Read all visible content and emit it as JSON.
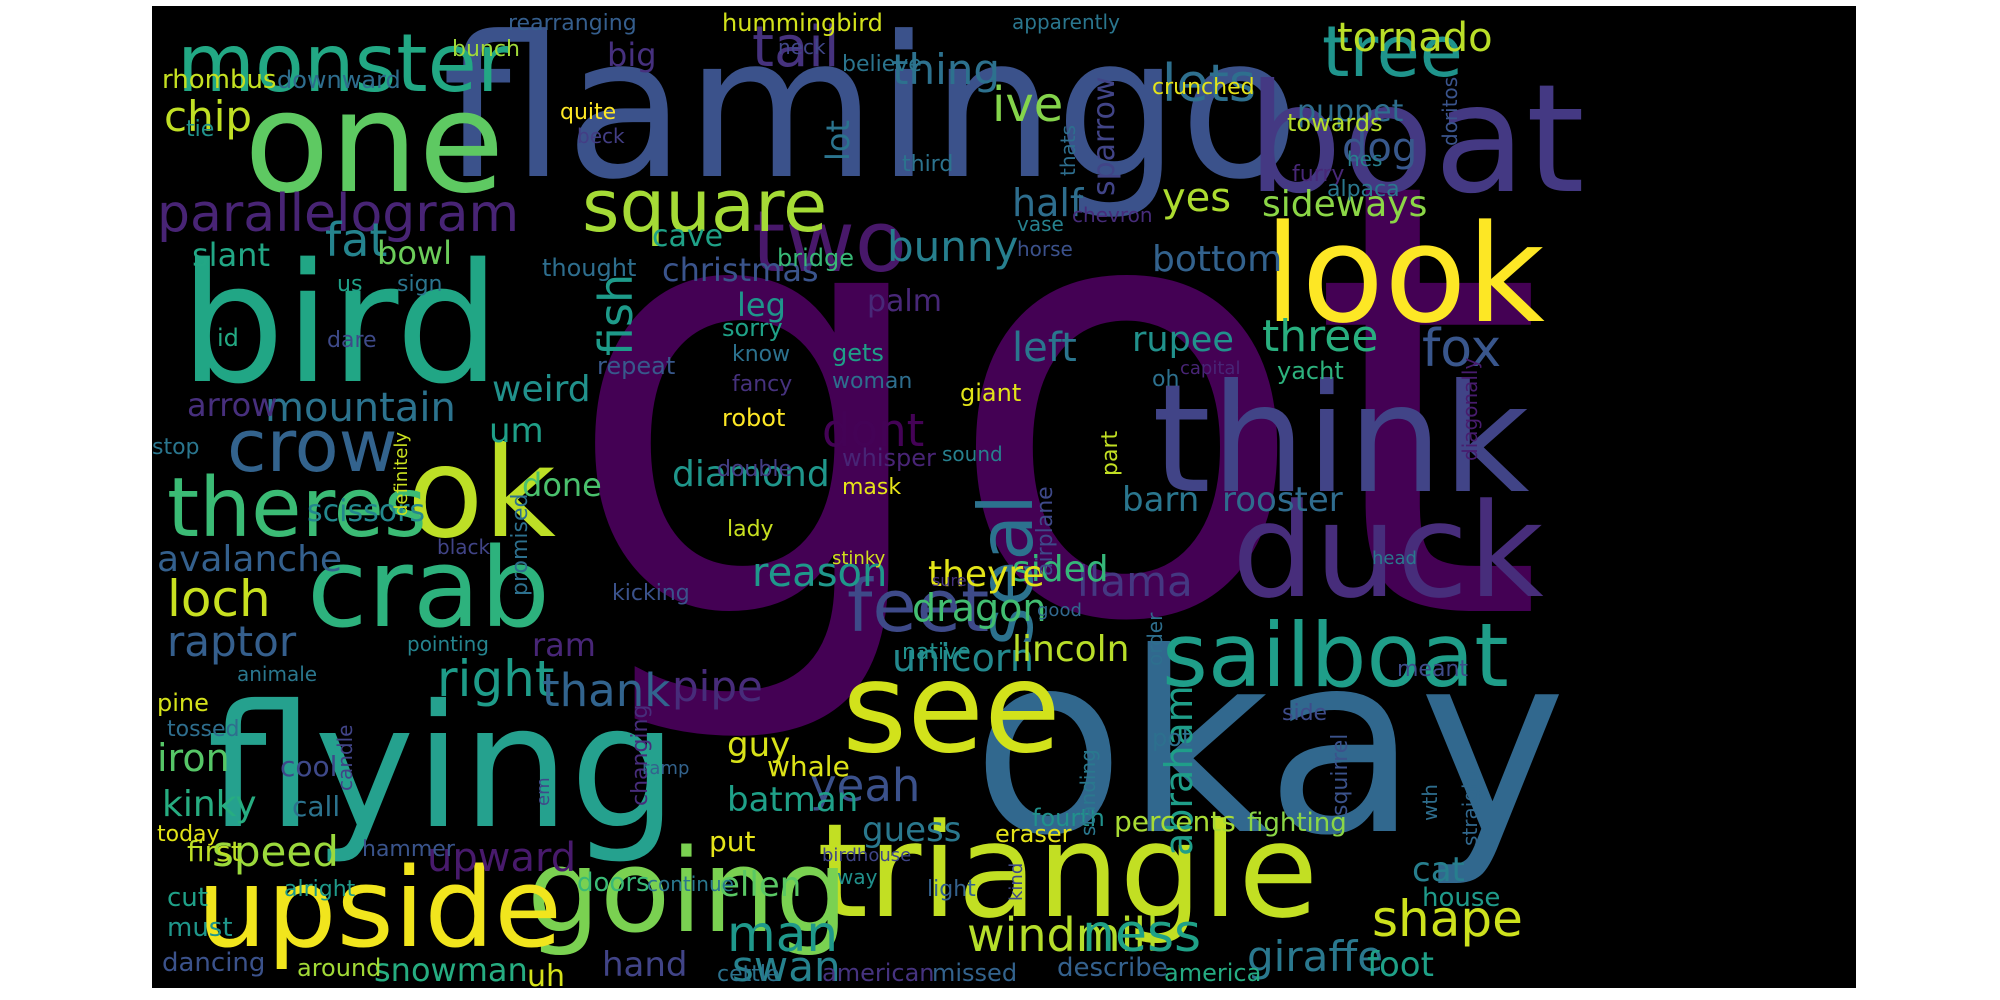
{
  "word_cloud": {
    "background": "#000000",
    "words": [
      {
        "text": "got",
        "color": "#440154"
      },
      {
        "text": "okay",
        "color": "#31688e"
      },
      {
        "text": "flamingo",
        "color": "#3b528b"
      },
      {
        "text": "one",
        "color": "#5ec962"
      },
      {
        "text": "boat",
        "color": "#443983"
      },
      {
        "text": "bird",
        "color": "#21a685"
      },
      {
        "text": "look",
        "color": "#fde725"
      },
      {
        "text": "think",
        "color": "#414487"
      },
      {
        "text": "duck",
        "color": "#472d7b"
      },
      {
        "text": "flying",
        "color": "#25a18e"
      },
      {
        "text": "triangle",
        "color": "#c2df23"
      },
      {
        "text": "see",
        "color": "#d2e21b"
      },
      {
        "text": "going",
        "color": "#7ad151"
      },
      {
        "text": "upside",
        "color": "#f1e51d"
      },
      {
        "text": "crab",
        "color": "#2db27d"
      },
      {
        "text": "ok",
        "color": "#bddf26"
      },
      {
        "text": "sailboat",
        "color": "#1f9e89"
      },
      {
        "text": "monster",
        "color": "#22a884"
      },
      {
        "text": "theres",
        "color": "#3bbb75"
      },
      {
        "text": "two",
        "color": "#48186a"
      },
      {
        "text": "square",
        "color": "#a5db36"
      },
      {
        "text": "tree",
        "color": "#1f948c"
      },
      {
        "text": "feet",
        "color": "#3e4a89"
      },
      {
        "text": "seal",
        "color": "#2c728e"
      },
      {
        "text": "crow",
        "color": "#33638d"
      },
      {
        "text": "parallelogram",
        "color": "#482475"
      },
      {
        "text": "tail",
        "color": "#46327e"
      },
      {
        "text": "lets",
        "color": "#2e6f8e"
      },
      {
        "text": "tornado",
        "color": "#bade28"
      },
      {
        "text": "loch",
        "color": "#c8e020"
      },
      {
        "text": "raptor",
        "color": "#355f8d"
      },
      {
        "text": "right",
        "color": "#1e9c89"
      },
      {
        "text": "three",
        "color": "#29af7f"
      },
      {
        "text": "fox",
        "color": "#39568c"
      },
      {
        "text": "llama",
        "color": "#453882"
      },
      {
        "text": "shape",
        "color": "#cde11d"
      },
      {
        "text": "giraffe",
        "color": "#2a788e"
      },
      {
        "text": "man",
        "color": "#1f988b"
      },
      {
        "text": "windmill",
        "color": "#b5de2b"
      },
      {
        "text": "ness",
        "color": "#1fa187"
      },
      {
        "text": "swan",
        "color": "#26828e"
      },
      {
        "text": "yeah",
        "color": "#3b518b"
      },
      {
        "text": "upward",
        "color": "#481a6c"
      },
      {
        "text": "speed",
        "color": "#9bd93c"
      },
      {
        "text": "thank",
        "color": "#32648e"
      },
      {
        "text": "pipe",
        "color": "#472c7a"
      },
      {
        "text": "bunny",
        "color": "#277f8e"
      },
      {
        "text": "dont",
        "color": "#440256"
      },
      {
        "text": "ive",
        "color": "#84d44b"
      },
      {
        "text": "thing",
        "color": "#2d718e"
      },
      {
        "text": "dog",
        "color": "#38588c"
      },
      {
        "text": "fat",
        "color": "#25848e"
      },
      {
        "text": "chip",
        "color": "#c0df25"
      },
      {
        "text": "half",
        "color": "#2e6e8e"
      },
      {
        "text": "fish",
        "color": "#1e9b8a"
      },
      {
        "text": "mountain",
        "color": "#2c738e"
      },
      {
        "text": "left",
        "color": "#2a768e"
      },
      {
        "text": "sideways",
        "color": "#8bd646"
      },
      {
        "text": "yes",
        "color": "#addc30"
      },
      {
        "text": "bottom",
        "color": "#33628d"
      },
      {
        "text": "rupee",
        "color": "#21918c"
      },
      {
        "text": "barn",
        "color": "#2a768e"
      },
      {
        "text": "rooster",
        "color": "#2f6c8e"
      },
      {
        "text": "sided",
        "color": "#35b779"
      },
      {
        "text": "dragon",
        "color": "#42be71"
      },
      {
        "text": "unicorn",
        "color": "#23898e"
      },
      {
        "text": "lincoln",
        "color": "#b8de29"
      },
      {
        "text": "abraham",
        "color": "#1f9e89"
      },
      {
        "text": "reason",
        "color": "#1f988b"
      },
      {
        "text": "theyre",
        "color": "#e2e418"
      },
      {
        "text": "diamond",
        "color": "#1f968b"
      },
      {
        "text": "weird",
        "color": "#21918c"
      },
      {
        "text": "avalanche",
        "color": "#34608d"
      },
      {
        "text": "kinky",
        "color": "#27ad81"
      },
      {
        "text": "iron",
        "color": "#56c667"
      },
      {
        "text": "guy",
        "color": "#d8e219"
      },
      {
        "text": "guess",
        "color": "#2a788e"
      },
      {
        "text": "batman",
        "color": "#1fa088"
      },
      {
        "text": "ellen",
        "color": "#5ac864"
      },
      {
        "text": "snowman",
        "color": "#26ad81"
      },
      {
        "text": "foot",
        "color": "#1fa187"
      },
      {
        "text": "cat",
        "color": "#277f8e"
      },
      {
        "text": "hand",
        "color": "#414487"
      },
      {
        "text": "puppet",
        "color": "#2e6e8e"
      },
      {
        "text": "big",
        "color": "#46307e"
      },
      {
        "text": "bowl",
        "color": "#6ccd5a"
      },
      {
        "text": "slant",
        "color": "#22a785"
      },
      {
        "text": "christmas",
        "color": "#3a548c"
      },
      {
        "text": "cave",
        "color": "#1fa187"
      },
      {
        "text": "leg",
        "color": "#1f958b"
      },
      {
        "text": "palm",
        "color": "#482878"
      },
      {
        "text": "lot",
        "color": "#2b748e"
      },
      {
        "text": "sparrow",
        "color": "#414487"
      },
      {
        "text": "arrow",
        "color": "#472f7d"
      },
      {
        "text": "um",
        "color": "#1f9f88"
      },
      {
        "text": "done",
        "color": "#4ac16d"
      },
      {
        "text": "scissors",
        "color": "#23888e"
      },
      {
        "text": "ram",
        "color": "#482677"
      },
      {
        "text": "first",
        "color": "#bddf26"
      },
      {
        "text": "cool",
        "color": "#3e4989"
      },
      {
        "text": "call",
        "color": "#2c738e"
      },
      {
        "text": "cut",
        "color": "#1fa088"
      },
      {
        "text": "must",
        "color": "#1f968b"
      },
      {
        "text": "dancing",
        "color": "#3b528b"
      },
      {
        "text": "around",
        "color": "#a2da37"
      },
      {
        "text": "uh",
        "color": "#d5e21a"
      },
      {
        "text": "doors",
        "color": "#3aba76"
      },
      {
        "text": "put",
        "color": "#e5e419"
      },
      {
        "text": "whale",
        "color": "#dde318"
      },
      {
        "text": "fourth",
        "color": "#21918c"
      },
      {
        "text": "percents",
        "color": "#a8db34"
      },
      {
        "text": "fighting",
        "color": "#8bd646"
      },
      {
        "text": "house",
        "color": "#1f9a8a"
      },
      {
        "text": "american",
        "color": "#46337f"
      },
      {
        "text": "missed",
        "color": "#33638d"
      },
      {
        "text": "describe",
        "color": "#34618d"
      },
      {
        "text": "america",
        "color": "#25ac82"
      },
      {
        "text": "cettle",
        "color": "#2c728e"
      },
      {
        "text": "hummingbird",
        "color": "#d2e21b"
      },
      {
        "text": "rearranging",
        "color": "#355e8d"
      },
      {
        "text": "bunch",
        "color": "#a0da39"
      },
      {
        "text": "rhombus",
        "color": "#c5e021"
      },
      {
        "text": "downward",
        "color": "#2e6d8e"
      },
      {
        "text": "neck",
        "color": "#404688"
      },
      {
        "text": "believe",
        "color": "#2b758e"
      },
      {
        "text": "apparently",
        "color": "#2a768e"
      },
      {
        "text": "crunched",
        "color": "#e5e419"
      },
      {
        "text": "towards",
        "color": "#b5de2b"
      },
      {
        "text": "thats",
        "color": "#2e6e8e"
      },
      {
        "text": "doritos",
        "color": "#3a548c"
      },
      {
        "text": "quite",
        "color": "#fde725"
      },
      {
        "text": "beck",
        "color": "#433e85"
      },
      {
        "text": "tie",
        "color": "#20928c"
      },
      {
        "text": "hes",
        "color": "#277f8e"
      },
      {
        "text": "furry",
        "color": "#482878"
      },
      {
        "text": "alpaca",
        "color": "#2a778e"
      },
      {
        "text": "third",
        "color": "#2c738e"
      },
      {
        "text": "chevron",
        "color": "#472c7a"
      },
      {
        "text": "vase",
        "color": "#26828e"
      },
      {
        "text": "horse",
        "color": "#3b518b"
      },
      {
        "text": "thought",
        "color": "#2e6e8e"
      },
      {
        "text": "bridge",
        "color": "#38b977"
      },
      {
        "text": "us",
        "color": "#1fa188"
      },
      {
        "text": "sign",
        "color": "#2b758e"
      },
      {
        "text": "id",
        "color": "#23a983"
      },
      {
        "text": "dare",
        "color": "#3e4a89"
      },
      {
        "text": "sorry",
        "color": "#1fa187"
      },
      {
        "text": "know",
        "color": "#2c718e"
      },
      {
        "text": "repeat",
        "color": "#38588c"
      },
      {
        "text": "fancy",
        "color": "#46327e"
      },
      {
        "text": "gets",
        "color": "#1f9f88"
      },
      {
        "text": "woman",
        "color": "#2e6e8e"
      },
      {
        "text": "giant",
        "color": "#e2e418"
      },
      {
        "text": "capital",
        "color": "#482576"
      },
      {
        "text": "yacht",
        "color": "#2db27d"
      },
      {
        "text": "oh",
        "color": "#2d708e"
      },
      {
        "text": "robot",
        "color": "#fde725"
      },
      {
        "text": "whisper",
        "color": "#482475"
      },
      {
        "text": "sound",
        "color": "#27808e"
      },
      {
        "text": "part",
        "color": "#c2df23"
      },
      {
        "text": "stop",
        "color": "#2a768e"
      },
      {
        "text": "definitely",
        "color": "#cae11f"
      },
      {
        "text": "double",
        "color": "#433e85"
      },
      {
        "text": "mask",
        "color": "#e7e419"
      },
      {
        "text": "lady",
        "color": "#c8e020"
      },
      {
        "text": "stinky",
        "color": "#d0e11c"
      },
      {
        "text": "black",
        "color": "#414487"
      },
      {
        "text": "promised",
        "color": "#2d708e"
      },
      {
        "text": "kicking",
        "color": "#3b528b"
      },
      {
        "text": "airplane",
        "color": "#3e4989"
      },
      {
        "text": "sure",
        "color": "#46337f"
      },
      {
        "text": "good",
        "color": "#31688e"
      },
      {
        "text": "head",
        "color": "#2a788e"
      },
      {
        "text": "diagonally",
        "color": "#481c6e"
      },
      {
        "text": "pointing",
        "color": "#25848e"
      },
      {
        "text": "native",
        "color": "#21918c"
      },
      {
        "text": "order",
        "color": "#2e6f8e"
      },
      {
        "text": "meant",
        "color": "#3e4c8a"
      },
      {
        "text": "pine",
        "color": "#d5e21a"
      },
      {
        "text": "animale",
        "color": "#2a778e"
      },
      {
        "text": "candle",
        "color": "#414487"
      },
      {
        "text": "tossed",
        "color": "#2e6e8e"
      },
      {
        "text": "em",
        "color": "#3e4a89"
      },
      {
        "text": "changing",
        "color": "#472d7b"
      },
      {
        "text": "ramp",
        "color": "#33638d"
      },
      {
        "text": "standing",
        "color": "#2a788e"
      },
      {
        "text": "pot",
        "color": "#2d708e"
      },
      {
        "text": "side",
        "color": "#3e4c8a"
      },
      {
        "text": "squirrel",
        "color": "#3b528b"
      },
      {
        "text": "wth",
        "color": "#2e6e8e"
      },
      {
        "text": "straight",
        "color": "#31688e"
      },
      {
        "text": "today",
        "color": "#e2e418"
      },
      {
        "text": "hammer",
        "color": "#3a548c"
      },
      {
        "text": "alright",
        "color": "#1f9a8a"
      },
      {
        "text": "continue",
        "color": "#2a778e"
      },
      {
        "text": "birdhouse",
        "color": "#404688"
      },
      {
        "text": "way",
        "color": "#21918c"
      },
      {
        "text": "eraser",
        "color": "#e5e419"
      },
      {
        "text": "kind",
        "color": "#3e4989"
      },
      {
        "text": "light",
        "color": "#34618d"
      }
    ]
  }
}
